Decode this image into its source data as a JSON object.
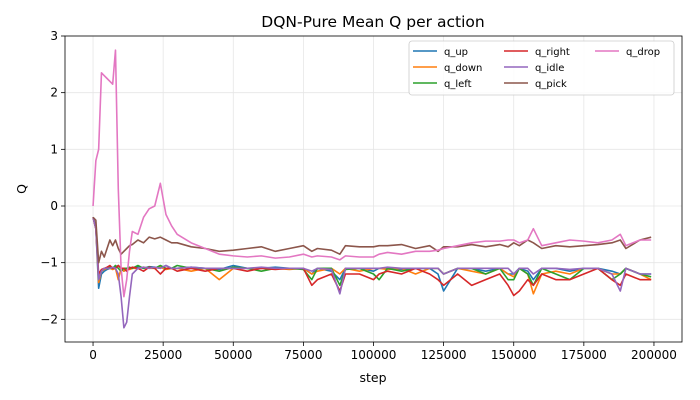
{
  "chart_data": {
    "type": "line",
    "title": "DQN-Pure Mean Q per action",
    "xlabel": "step",
    "ylabel": "Q",
    "xlim": [
      -10000,
      210000
    ],
    "ylim": [
      -2.4,
      3.0
    ],
    "x_ticks": [
      0,
      25000,
      50000,
      75000,
      100000,
      125000,
      150000,
      175000,
      200000
    ],
    "y_ticks": [
      -2,
      -1,
      0,
      1,
      2,
      3
    ],
    "grid": true,
    "legend_position": "top-right",
    "legend_columns": 3,
    "x": [
      0,
      1000,
      2000,
      3000,
      4000,
      5000,
      6000,
      7000,
      8000,
      9000,
      10000,
      11000,
      12000,
      13000,
      14000,
      16000,
      18000,
      20000,
      22000,
      24000,
      26000,
      28000,
      30000,
      35000,
      40000,
      45000,
      50000,
      55000,
      60000,
      65000,
      70000,
      75000,
      78000,
      80000,
      85000,
      88000,
      90000,
      95000,
      100000,
      102000,
      105000,
      110000,
      115000,
      120000,
      123000,
      125000,
      130000,
      135000,
      140000,
      145000,
      148000,
      150000,
      152000,
      155000,
      157000,
      160000,
      165000,
      170000,
      175000,
      180000,
      185000,
      188000,
      190000,
      195000,
      199000
    ],
    "series": [
      {
        "name": "q_up",
        "color": "#1f77b4",
        "values": [
          -0.2,
          -0.4,
          -1.45,
          -1.2,
          -1.15,
          -1.12,
          -1.1,
          -1.1,
          -1.08,
          -1.05,
          -1.1,
          -1.15,
          -1.12,
          -1.1,
          -1.1,
          -1.08,
          -1.1,
          -1.07,
          -1.08,
          -1.1,
          -1.05,
          -1.1,
          -1.1,
          -1.08,
          -1.1,
          -1.12,
          -1.05,
          -1.1,
          -1.1,
          -1.08,
          -1.1,
          -1.1,
          -1.2,
          -1.1,
          -1.15,
          -1.3,
          -1.1,
          -1.1,
          -1.15,
          -1.1,
          -1.1,
          -1.12,
          -1.1,
          -1.1,
          -1.2,
          -1.5,
          -1.1,
          -1.1,
          -1.15,
          -1.1,
          -1.2,
          -1.2,
          -1.1,
          -1.15,
          -1.3,
          -1.1,
          -1.1,
          -1.15,
          -1.1,
          -1.1,
          -1.15,
          -1.2,
          -1.1,
          -1.2,
          -1.2
        ]
      },
      {
        "name": "q_down",
        "color": "#ff7f0e",
        "values": [
          -0.2,
          -0.4,
          -1.35,
          -1.15,
          -1.12,
          -1.1,
          -1.1,
          -1.12,
          -1.1,
          -1.3,
          -1.1,
          -1.15,
          -1.1,
          -1.12,
          -1.1,
          -1.1,
          -1.08,
          -1.1,
          -1.1,
          -1.08,
          -1.12,
          -1.1,
          -1.1,
          -1.15,
          -1.1,
          -1.3,
          -1.1,
          -1.1,
          -1.1,
          -1.1,
          -1.12,
          -1.1,
          -1.2,
          -1.15,
          -1.1,
          -1.2,
          -1.1,
          -1.15,
          -1.1,
          -1.1,
          -1.12,
          -1.1,
          -1.2,
          -1.1,
          -1.1,
          -1.2,
          -1.1,
          -1.15,
          -1.2,
          -1.1,
          -1.2,
          -1.25,
          -1.1,
          -1.2,
          -1.55,
          -1.2,
          -1.15,
          -1.2,
          -1.1,
          -1.1,
          -1.2,
          -1.2,
          -1.1,
          -1.2,
          -1.3
        ]
      },
      {
        "name": "q_left",
        "color": "#2ca02c",
        "values": [
          -0.2,
          -0.35,
          -1.3,
          -1.15,
          -1.1,
          -1.1,
          -1.08,
          -1.1,
          -1.05,
          -1.1,
          -1.15,
          -1.1,
          -1.1,
          -1.08,
          -1.1,
          -1.05,
          -1.1,
          -1.08,
          -1.1,
          -1.05,
          -1.1,
          -1.1,
          -1.05,
          -1.1,
          -1.1,
          -1.15,
          -1.08,
          -1.1,
          -1.15,
          -1.1,
          -1.1,
          -1.12,
          -1.3,
          -1.1,
          -1.1,
          -1.4,
          -1.12,
          -1.1,
          -1.2,
          -1.3,
          -1.1,
          -1.15,
          -1.1,
          -1.1,
          -1.1,
          -1.2,
          -1.1,
          -1.1,
          -1.2,
          -1.1,
          -1.3,
          -1.3,
          -1.1,
          -1.2,
          -1.4,
          -1.1,
          -1.2,
          -1.3,
          -1.1,
          -1.1,
          -1.3,
          -1.2,
          -1.1,
          -1.2,
          -1.25
        ]
      },
      {
        "name": "q_right",
        "color": "#d62728",
        "values": [
          -0.2,
          -0.4,
          -1.2,
          -1.12,
          -1.1,
          -1.08,
          -1.05,
          -1.1,
          -1.1,
          -1.05,
          -1.1,
          -1.1,
          -1.15,
          -1.1,
          -1.08,
          -1.1,
          -1.15,
          -1.08,
          -1.1,
          -1.2,
          -1.1,
          -1.1,
          -1.15,
          -1.1,
          -1.15,
          -1.1,
          -1.1,
          -1.15,
          -1.1,
          -1.12,
          -1.1,
          -1.1,
          -1.4,
          -1.3,
          -1.2,
          -1.5,
          -1.2,
          -1.2,
          -1.3,
          -1.2,
          -1.15,
          -1.2,
          -1.1,
          -1.2,
          -1.3,
          -1.4,
          -1.2,
          -1.4,
          -1.3,
          -1.2,
          -1.4,
          -1.58,
          -1.5,
          -1.3,
          -1.4,
          -1.2,
          -1.3,
          -1.3,
          -1.2,
          -1.1,
          -1.3,
          -1.4,
          -1.2,
          -1.3,
          -1.3
        ]
      },
      {
        "name": "q_idle",
        "color": "#9467bd",
        "values": [
          -0.2,
          -0.4,
          -1.3,
          -1.15,
          -1.1,
          -1.1,
          -1.1,
          -1.08,
          -1.1,
          -1.2,
          -1.6,
          -2.15,
          -2.05,
          -1.6,
          -1.2,
          -1.1,
          -1.08,
          -1.1,
          -1.08,
          -1.1,
          -1.05,
          -1.1,
          -1.1,
          -1.08,
          -1.1,
          -1.1,
          -1.1,
          -1.1,
          -1.08,
          -1.1,
          -1.1,
          -1.1,
          -1.15,
          -1.1,
          -1.12,
          -1.55,
          -1.1,
          -1.1,
          -1.1,
          -1.1,
          -1.08,
          -1.1,
          -1.1,
          -1.1,
          -1.1,
          -1.2,
          -1.1,
          -1.1,
          -1.1,
          -1.1,
          -1.1,
          -1.2,
          -1.1,
          -1.1,
          -1.2,
          -1.1,
          -1.1,
          -1.12,
          -1.1,
          -1.1,
          -1.2,
          -1.5,
          -1.1,
          -1.2,
          -1.2
        ]
      },
      {
        "name": "q_pick",
        "color": "#8c564b",
        "values": [
          -0.2,
          -0.25,
          -1.0,
          -0.8,
          -0.9,
          -0.75,
          -0.6,
          -0.7,
          -0.6,
          -0.75,
          -0.85,
          -0.8,
          -0.75,
          -0.7,
          -0.68,
          -0.6,
          -0.65,
          -0.55,
          -0.58,
          -0.55,
          -0.6,
          -0.65,
          -0.65,
          -0.72,
          -0.75,
          -0.8,
          -0.78,
          -0.75,
          -0.72,
          -0.8,
          -0.75,
          -0.7,
          -0.8,
          -0.75,
          -0.78,
          -0.85,
          -0.7,
          -0.72,
          -0.72,
          -0.7,
          -0.7,
          -0.68,
          -0.75,
          -0.7,
          -0.8,
          -0.72,
          -0.72,
          -0.68,
          -0.72,
          -0.68,
          -0.72,
          -0.65,
          -0.7,
          -0.6,
          -0.65,
          -0.75,
          -0.7,
          -0.72,
          -0.7,
          -0.68,
          -0.65,
          -0.6,
          -0.75,
          -0.6,
          -0.55
        ]
      },
      {
        "name": "q_drop",
        "color": "#e377c2",
        "values": [
          0.0,
          0.8,
          1.0,
          2.35,
          2.3,
          2.25,
          2.2,
          2.15,
          2.75,
          0.3,
          -1.1,
          -1.6,
          -1.3,
          -0.8,
          -0.45,
          -0.5,
          -0.2,
          -0.05,
          0.0,
          0.4,
          -0.15,
          -0.35,
          -0.5,
          -0.65,
          -0.75,
          -0.85,
          -0.88,
          -0.9,
          -0.88,
          -0.92,
          -0.9,
          -0.85,
          -0.9,
          -0.88,
          -0.9,
          -0.95,
          -0.88,
          -0.9,
          -0.9,
          -0.85,
          -0.82,
          -0.85,
          -0.8,
          -0.8,
          -0.78,
          -0.75,
          -0.7,
          -0.65,
          -0.62,
          -0.62,
          -0.6,
          -0.6,
          -0.65,
          -0.6,
          -0.4,
          -0.7,
          -0.65,
          -0.6,
          -0.62,
          -0.65,
          -0.6,
          -0.5,
          -0.7,
          -0.6,
          -0.6
        ]
      }
    ]
  }
}
